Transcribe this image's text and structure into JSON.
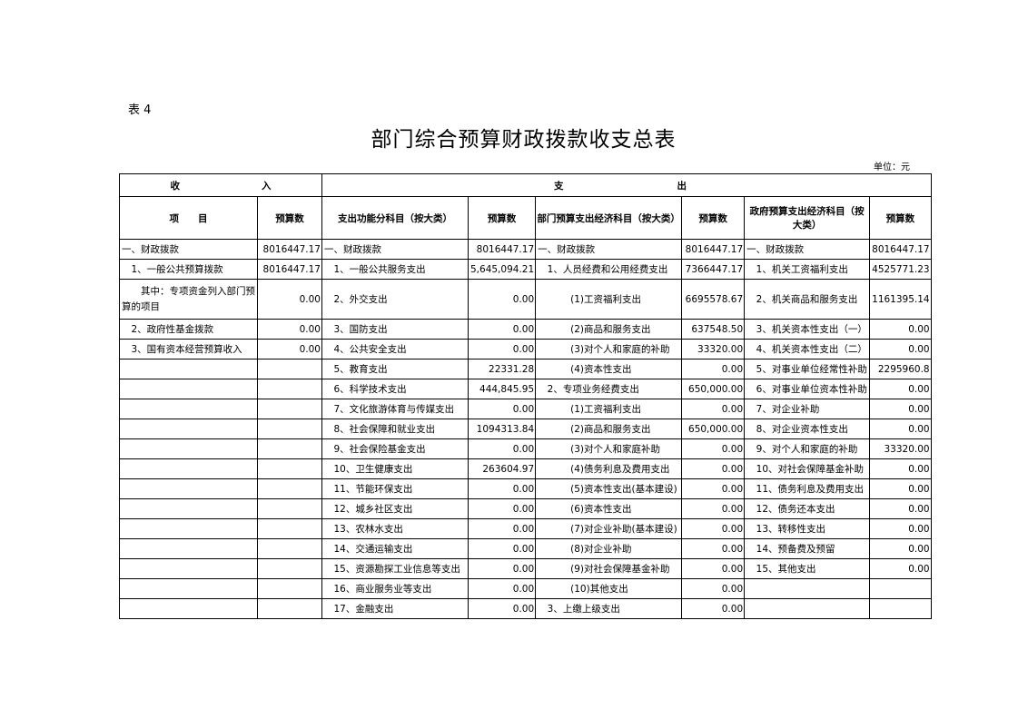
{
  "doc": {
    "label": "表 4",
    "title": "部门综合预算财政拨款收支总表",
    "unit": "单位：元"
  },
  "header": {
    "income": "收",
    "income2": "入",
    "expense": "支",
    "expense2": "出",
    "cols": [
      "项　　目",
      "预算数",
      "支出功能分科目（按大类）",
      "预算数",
      "部门预算支出经济科目（按大类）",
      "预算数",
      "政府预算支出经济科目（按大类）",
      "预算数"
    ]
  },
  "rows": [
    [
      "一、财政拨款",
      "8016447.17",
      "一、财政拨款",
      "8016447.17",
      "一、财政拨款",
      "8016447.17",
      "一、财政拨款",
      "8016447.17"
    ],
    [
      "　1、一般公共预算拨款",
      "8016447.17",
      "　1、一般公共服务支出",
      "5,645,094.21",
      "　1、人员经费和公用经费支出",
      "7366447.17",
      "　1、机关工资福利支出",
      "4525771.23"
    ],
    [
      "　　其中：专项资金列入部门预算的项目",
      "0.00",
      "　2、外交支出",
      "0.00",
      "(1)工资福利支出",
      "6695578.67",
      "　2、机关商品和服务支出",
      "1161395.14"
    ],
    [
      "　2、政府性基金拨款",
      "0.00",
      "　3、国防支出",
      "0.00",
      "(2)商品和服务支出",
      "637548.50",
      "　3、机关资本性支出（一）",
      "0.00"
    ],
    [
      "　3、国有资本经营预算收入",
      "0.00",
      "　4、公共安全支出",
      "0.00",
      "(3)对个人和家庭的补助",
      "33320.00",
      "　4、机关资本性支出（二）",
      "0.00"
    ],
    [
      "",
      "",
      "　5、教育支出",
      "22331.28",
      "(4)资本性支出",
      "0.00",
      "　5、对事业单位经常性补助",
      "2295960.8"
    ],
    [
      "",
      "",
      "　6、科学技术支出",
      "444,845.95",
      "　2、专项业务经费支出",
      "650,000.00",
      "　6、对事业单位资本性补助",
      "0.00"
    ],
    [
      "",
      "",
      "　7、文化旅游体育与传媒支出",
      "0.00",
      "(1)工资福利支出",
      "0.00",
      "　7、对企业补助",
      "0.00"
    ],
    [
      "",
      "",
      "　8、社会保障和就业支出",
      "1094313.84",
      "(2)商品和服务支出",
      "650,000.00",
      "　8、对企业资本性支出",
      "0.00"
    ],
    [
      "",
      "",
      "　9、社会保险基金支出",
      "0.00",
      "(3)对个人和家庭补助",
      "0.00",
      "　9、对个人和家庭的补助",
      "33320.00"
    ],
    [
      "",
      "",
      "　10、卫生健康支出",
      "263604.97",
      "(4)债务利息及费用支出",
      "0.00",
      "　10、对社会保障基金补助",
      "0.00"
    ],
    [
      "",
      "",
      "　11、节能环保支出",
      "0.00",
      "(5)资本性支出(基本建设)",
      "0.00",
      "　11、债务利息及费用支出",
      "0.00"
    ],
    [
      "",
      "",
      "　12、城乡社区支出",
      "0.00",
      "(6)资本性支出",
      "0.00",
      "　12、债务还本支出",
      "0.00"
    ],
    [
      "",
      "",
      "　13、农林水支出",
      "0.00",
      "(7)对企业补助(基本建设)",
      "0.00",
      "　13、转移性支出",
      "0.00"
    ],
    [
      "",
      "",
      "　14、交通运输支出",
      "0.00",
      "(8)对企业补助",
      "0.00",
      "　14、预备费及预留",
      "0.00"
    ],
    [
      "",
      "",
      "　15、资源勘探工业信息等支出",
      "0.00",
      "(9)对社会保障基金补助",
      "0.00",
      "　15、其他支出",
      "0.00"
    ],
    [
      "",
      "",
      "　16、商业服务业等支出",
      "0.00",
      "(10)其他支出",
      "0.00",
      "",
      ""
    ],
    [
      "",
      "",
      "　17、金融支出",
      "0.00",
      "　3、上缴上级支出",
      "0.00",
      "",
      ""
    ]
  ]
}
